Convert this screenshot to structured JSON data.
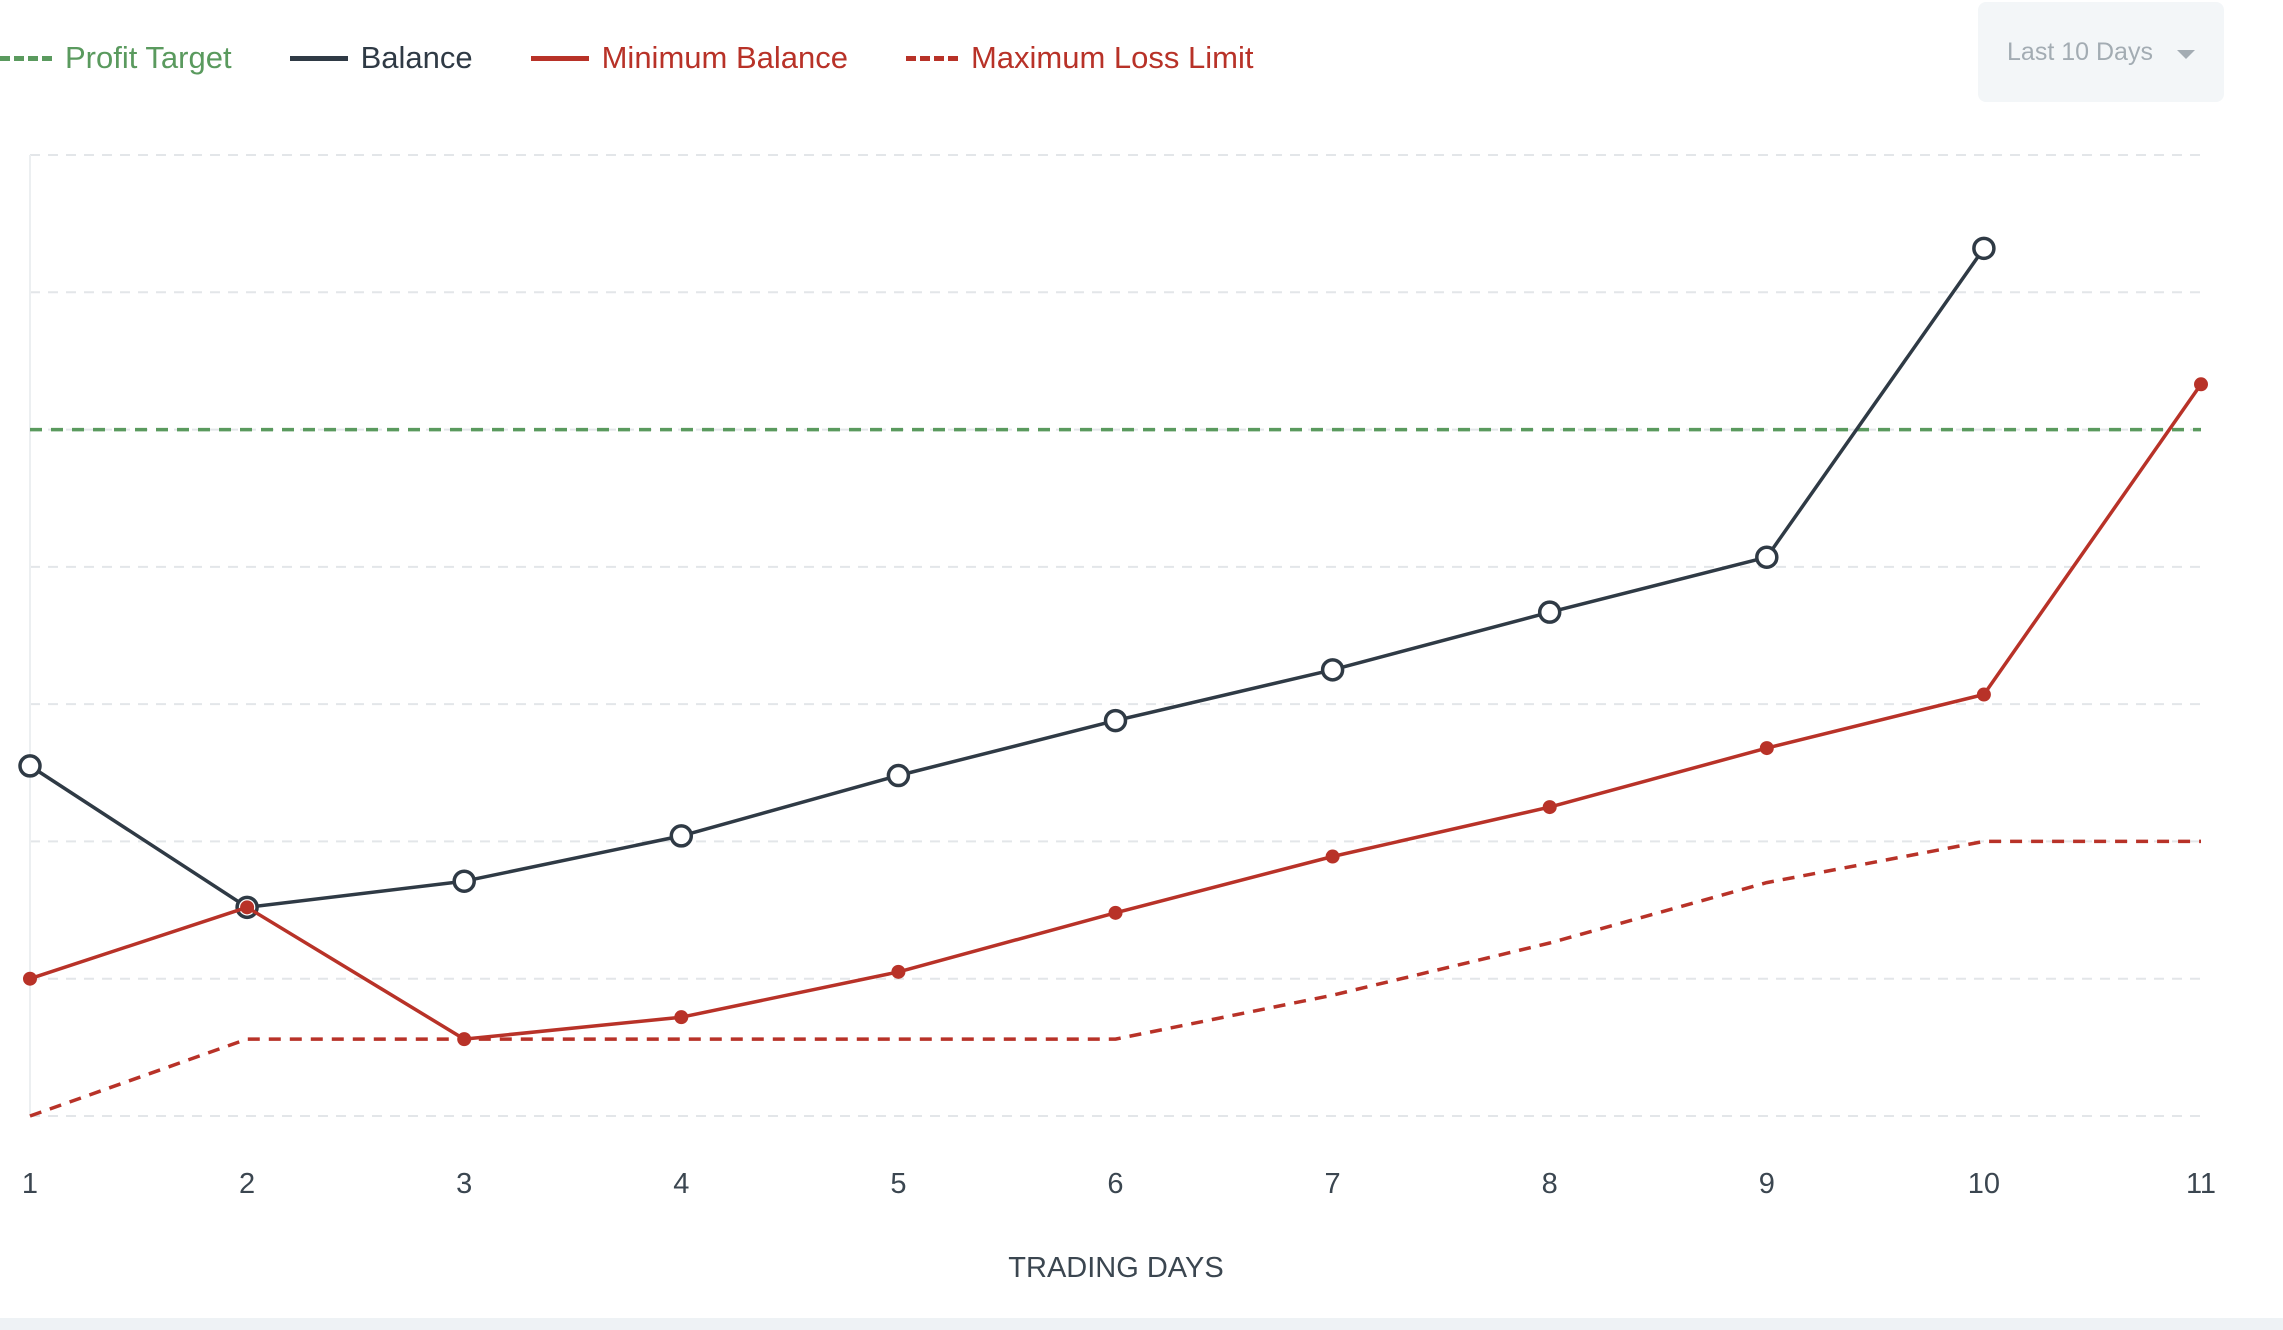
{
  "range_select": {
    "label": "Last 10 Days"
  },
  "chart_data": {
    "type": "line",
    "xlabel": "TRADING DAYS",
    "ylabel": "",
    "x": [
      1,
      2,
      3,
      4,
      5,
      6,
      7,
      8,
      9,
      10,
      11
    ],
    "xlim": [
      1,
      11
    ],
    "ylim": [
      0,
      7
    ],
    "y_gridlines": [
      0,
      1,
      2,
      3,
      4,
      5,
      6,
      7
    ],
    "grid": true,
    "legend_position": "top-left",
    "series": [
      {
        "name": "Profit Target",
        "style": "dashed",
        "color": "#5a9a5e",
        "x": [
          1,
          11
        ],
        "values": [
          5.0,
          5.0
        ]
      },
      {
        "name": "Balance",
        "style": "solid",
        "marker": "hollow-circle",
        "color": "#2f3a45",
        "x": [
          1,
          2,
          3,
          4,
          5,
          6,
          7,
          8,
          9,
          10
        ],
        "values": [
          2.55,
          1.52,
          1.71,
          2.04,
          2.48,
          2.88,
          3.25,
          3.67,
          4.07,
          6.32
        ]
      },
      {
        "name": "Minimum Balance",
        "style": "solid",
        "marker": "filled-dot",
        "color": "#b83228",
        "x": [
          1,
          2,
          3,
          4,
          5,
          6,
          7,
          8,
          9,
          10,
          11
        ],
        "values": [
          1.0,
          1.52,
          0.56,
          0.72,
          1.05,
          1.48,
          1.89,
          2.25,
          2.68,
          3.07,
          5.33
        ]
      },
      {
        "name": "Maximum Loss Limit",
        "style": "dashed",
        "color": "#b83228",
        "x": [
          1,
          2,
          3,
          4,
          5,
          6,
          7,
          8,
          9,
          10,
          11
        ],
        "values": [
          0.0,
          0.56,
          0.56,
          0.56,
          0.56,
          0.56,
          0.88,
          1.26,
          1.7,
          2.0,
          2.0
        ]
      }
    ]
  }
}
